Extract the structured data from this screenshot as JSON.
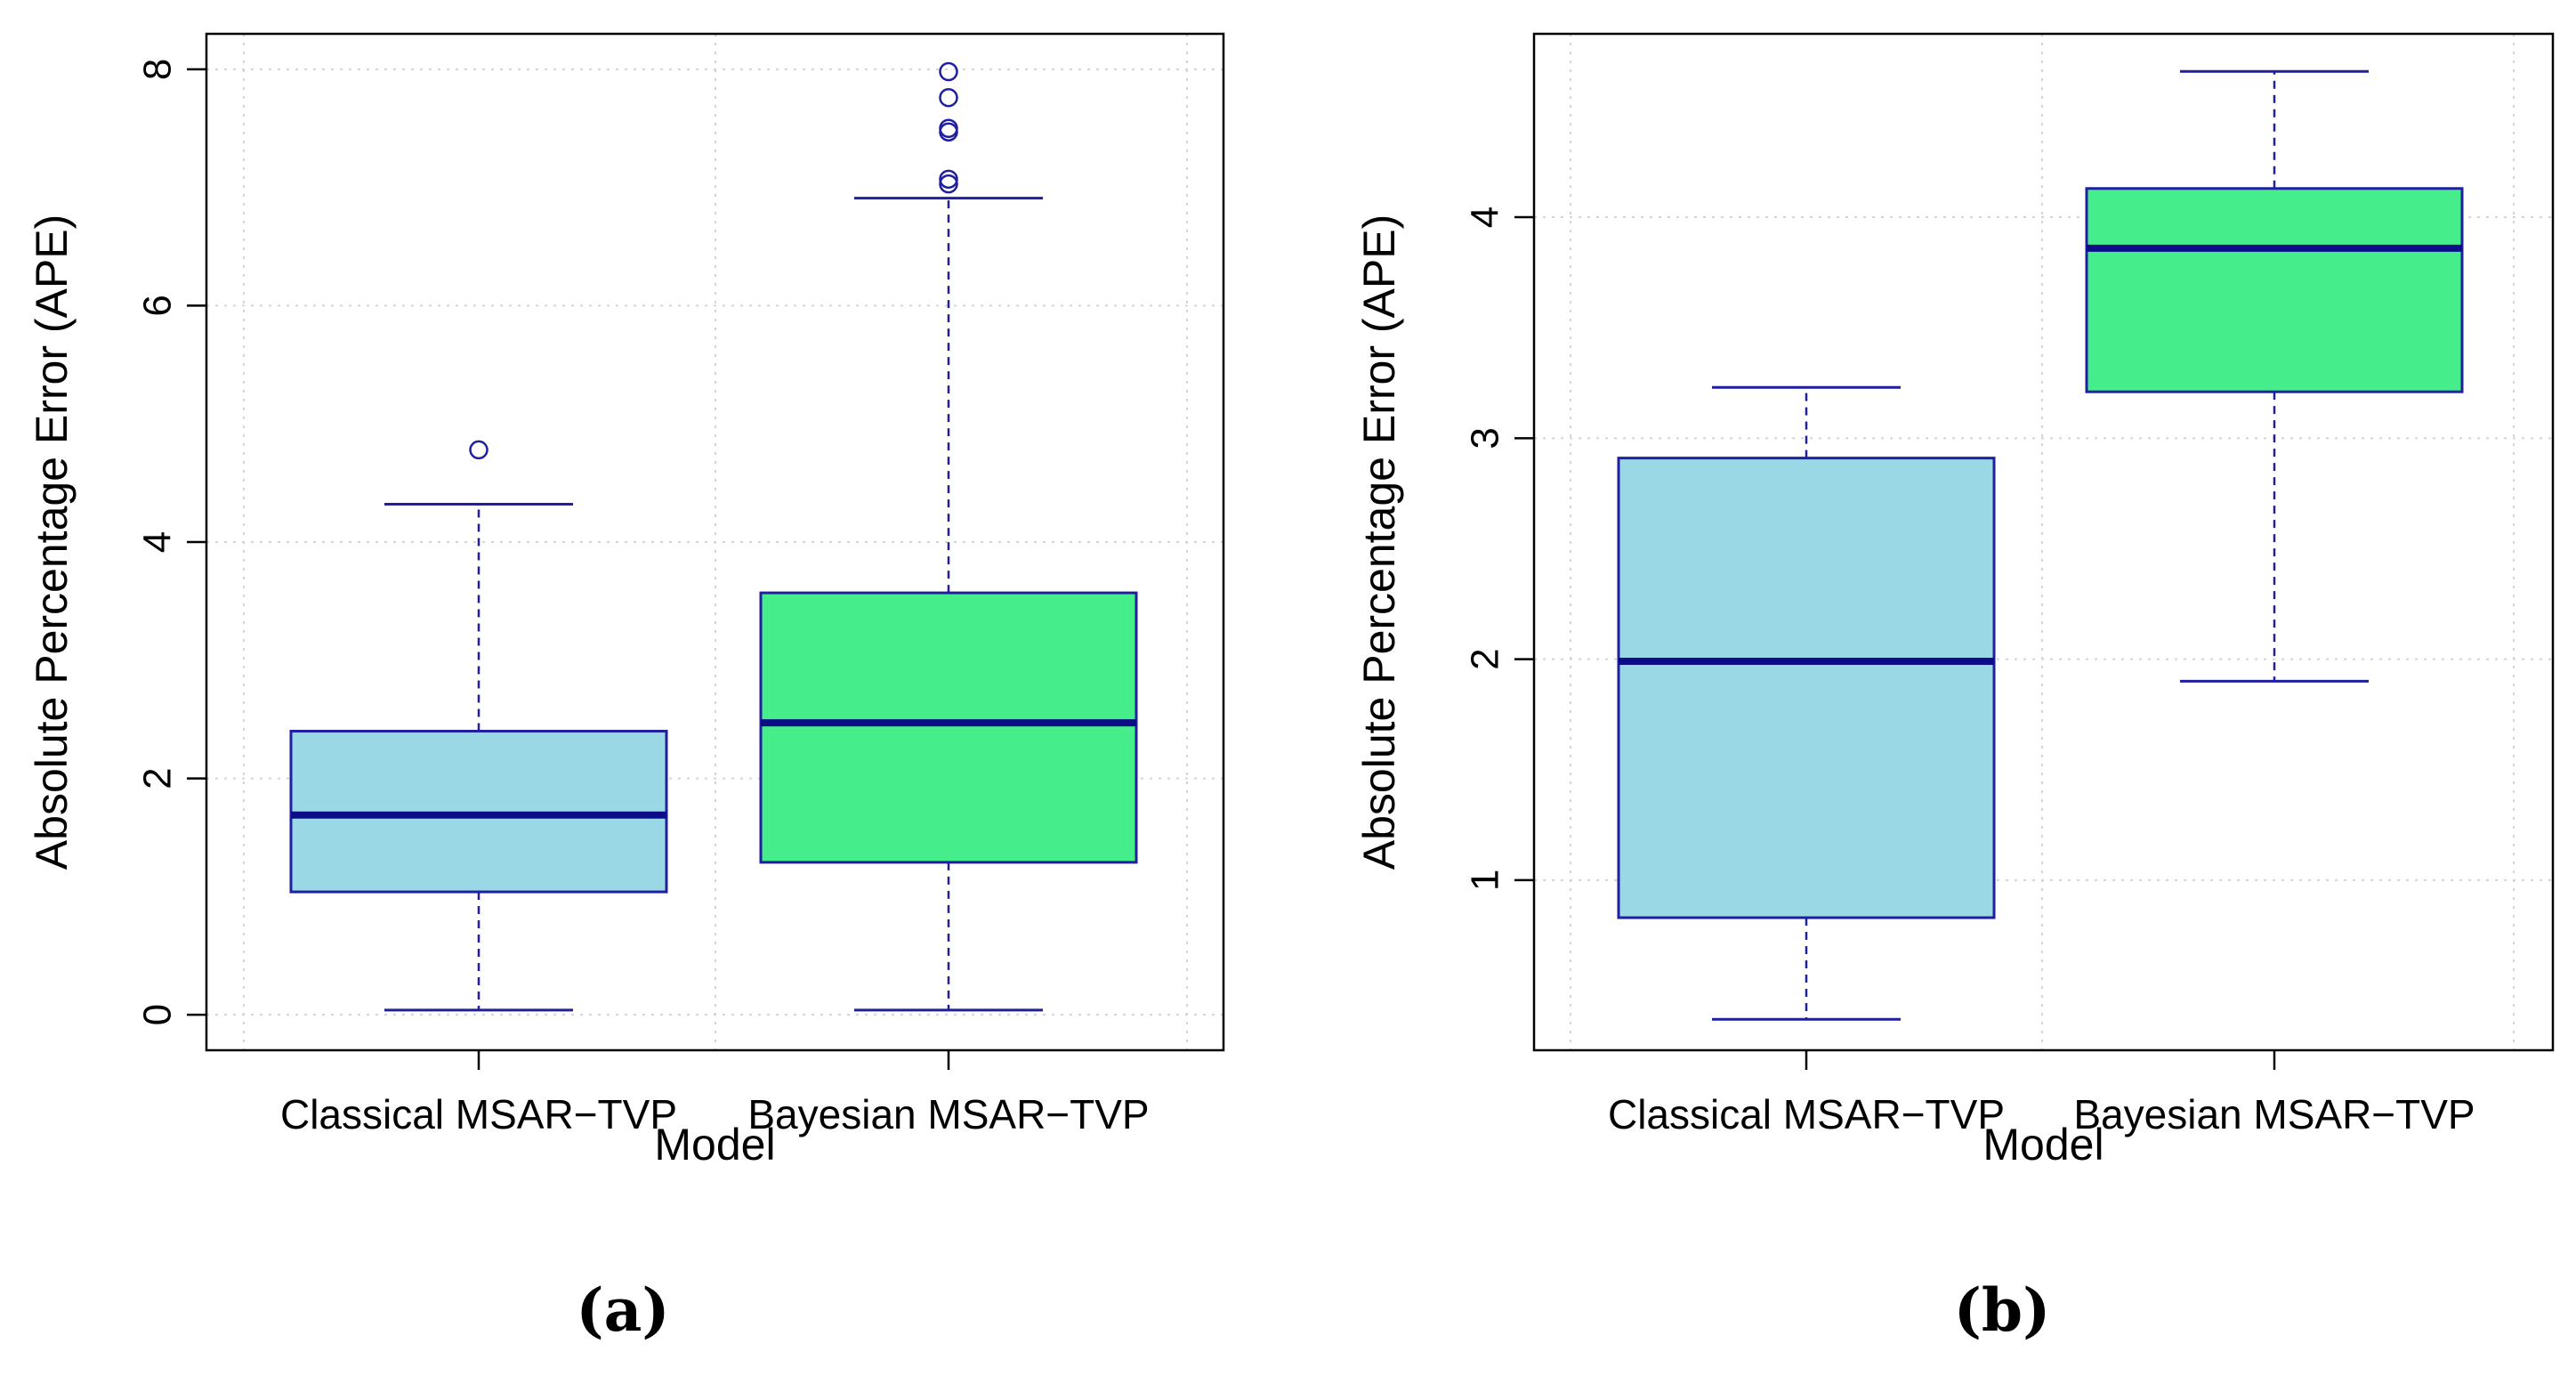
{
  "chart_data": [
    {
      "type": "boxplot",
      "panel_label": "(a)",
      "xlabel": "Model",
      "ylabel": "Absolute Percentage Error (APE)",
      "ylim": [
        -0.3,
        8.3
      ],
      "yticks": [
        0,
        2,
        4,
        6,
        8
      ],
      "ytick_labels": [
        "0",
        "2",
        "4",
        "6",
        "8"
      ],
      "grid": true,
      "categories": [
        "Classical MSAR−TVP",
        "Bayesian MSAR−TVP"
      ],
      "boxes": [
        {
          "name": "Classical MSAR−TVP",
          "whisker_low": 0.04,
          "q1": 1.04,
          "median": 1.69,
          "q3": 2.4,
          "whisker_high": 4.32,
          "outliers": [
            4.78
          ],
          "fill": "#9ad8e6"
        },
        {
          "name": "Bayesian MSAR−TVP",
          "whisker_low": 0.04,
          "q1": 1.29,
          "median": 2.47,
          "q3": 3.57,
          "whisker_high": 6.91,
          "outliers": [
            7.03,
            7.07,
            7.47,
            7.5,
            7.76,
            7.98
          ],
          "fill": "#45ee8a"
        }
      ]
    },
    {
      "type": "boxplot",
      "panel_label": "(b)",
      "xlabel": "Model",
      "ylabel": "Absolute Percentage Error (APE)",
      "ylim": [
        0.23,
        4.83
      ],
      "yticks": [
        1,
        2,
        3,
        4
      ],
      "ytick_labels": [
        "1",
        "2",
        "3",
        "4"
      ],
      "grid": true,
      "categories": [
        "Classical MSAR−TVP",
        "Bayesian MSAR−TVP"
      ],
      "boxes": [
        {
          "name": "Classical MSAR−TVP",
          "whisker_low": 0.37,
          "q1": 0.83,
          "median": 1.99,
          "q3": 2.91,
          "whisker_high": 3.23,
          "outliers": [],
          "fill": "#9ad8e6"
        },
        {
          "name": "Bayesian MSAR−TVP",
          "whisker_low": 1.9,
          "q1": 3.21,
          "median": 3.86,
          "q3": 4.13,
          "whisker_high": 4.66,
          "outliers": [],
          "fill": "#45ee8a"
        }
      ]
    }
  ],
  "colors": {
    "stroke": "#1f1fa0",
    "median": "#0d0d8a",
    "grid": "#d3d3d3",
    "axis": "#000000"
  }
}
